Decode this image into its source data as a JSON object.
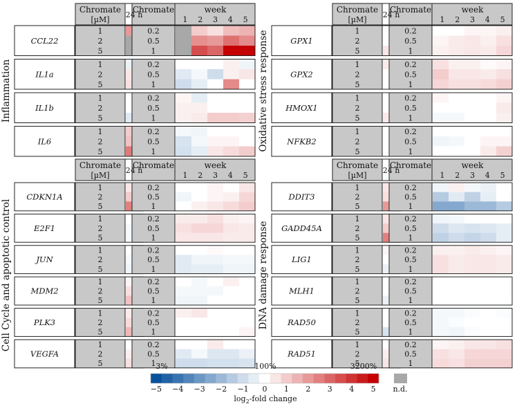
{
  "chart_data": {
    "type": "heatmap",
    "title": "",
    "week_label": "week",
    "hdr_chromate": "Chromate",
    "hdr_uM": "[µM]",
    "hdr_24h": "24 h",
    "week_ticks": [
      "1",
      "2",
      "3",
      "4",
      "5"
    ],
    "conc_24h": [
      "1",
      "2",
      "5"
    ],
    "conc_week": [
      "0.2",
      "0.5",
      "1"
    ],
    "panels": [
      {
        "id": "inflammation",
        "title": "Inflammation",
        "genes": [
          {
            "name": "CCL22",
            "h24": [
              2,
              "nd",
              "nd"
            ],
            "weeks": [
              [
                "nd",
                1,
                0.6,
                1.3,
                1.5
              ],
              [
                "nd",
                2.2,
                2,
                2.8,
                2.3
              ],
              [
                "nd",
                3.5,
                3,
                5,
                5
              ]
            ]
          },
          {
            "name": "IL1a",
            "h24": [
              -0.4,
              0.5,
              0.6
            ],
            "weeks": [
              [
                0,
                0,
                0,
                0.3,
                -0.3
              ],
              [
                -0.6,
                -0.2,
                -1,
                0.3,
                0.5
              ],
              [
                -1,
                -0.5,
                0,
                2.3,
                0
              ]
            ]
          },
          {
            "name": "IL1b",
            "h24": [
              0,
              0,
              -0.6
            ],
            "weeks": [
              [
                0.2,
                -0.5,
                0,
                0,
                0
              ],
              [
                0.3,
                0.3,
                0,
                0,
                0
              ],
              [
                0.3,
                0.4,
                1,
                1,
                0.9
              ]
            ]
          },
          {
            "name": "IL6",
            "h24": [
              1,
              1.2,
              2.6
            ],
            "weeks": [
              [
                -0.2,
                -0.3,
                0,
                0,
                0
              ],
              [
                -0.8,
                -0.2,
                0.2,
                0.2,
                0
              ],
              [
                -0.9,
                -0.5,
                0.5,
                0.7,
                1
              ]
            ]
          }
        ]
      },
      {
        "id": "oxidative",
        "title": "Oxidative stress response",
        "genes": [
          {
            "name": "GPX1",
            "h24": [
              0,
              0,
              0.5
            ],
            "weeks": [
              [
                0,
                0,
                0.2,
                0.2,
                0.3
              ],
              [
                0.2,
                0.4,
                0.5,
                0.3,
                0.6
              ],
              [
                0.3,
                0.4,
                0.5,
                0.4,
                0.8
              ]
            ]
          },
          {
            "name": "GPX2",
            "h24": [
              0.4,
              0,
              0
            ],
            "weeks": [
              [
                0.6,
                0.3,
                0.3,
                0.1,
                0.2
              ],
              [
                1,
                0.5,
                0.5,
                0.4,
                0.6
              ],
              [
                0.8,
                0.6,
                0.6,
                0.7,
                0.9
              ]
            ]
          },
          {
            "name": "HMOX1",
            "h24": [
              0,
              0,
              0.4
            ],
            "weeks": [
              [
                0.2,
                0,
                0,
                0,
                0.2
              ],
              [
                0,
                0,
                0,
                0,
                0.4
              ],
              [
                -0.2,
                -0.2,
                0,
                0,
                0.3
              ]
            ]
          },
          {
            "name": "NFKB2",
            "h24": [
              0,
              0,
              0
            ],
            "weeks": [
              [
                0,
                0,
                0,
                0,
                0
              ],
              [
                -0.3,
                -0.2,
                0,
                0.2,
                0.2
              ],
              [
                0,
                0,
                0,
                0.4,
                0.9
              ]
            ]
          }
        ]
      },
      {
        "id": "cellcycle",
        "title": "Cell Cycle and apoptotic control",
        "genes": [
          {
            "name": "CDKN1A",
            "h24": [
              0.5,
              1,
              2.5
            ],
            "weeks": [
              [
                0,
                0,
                0.2,
                0,
                0.5
              ],
              [
                -0.3,
                0,
                0.2,
                0.3,
                0.8
              ],
              [
                0,
                0.3,
                0.5,
                0.7,
                1
              ]
            ]
          },
          {
            "name": "E2F1",
            "h24": [
              0,
              -0.2,
              -0.2
            ],
            "weeks": [
              [
                0.4,
                0.4,
                0.6,
                0.3,
                0.2
              ],
              [
                0.6,
                0.8,
                0.8,
                0.5,
                0.4
              ],
              [
                0.5,
                0.5,
                0.5,
                0.4,
                0.4
              ]
            ]
          },
          {
            "name": "JUN",
            "h24": [
              0,
              -0.2,
              -0.3
            ],
            "weeks": [
              [
                0,
                0,
                0.1,
                0,
                0
              ],
              [
                -0.6,
                -0.3,
                -0.3,
                -0.2,
                -0.2
              ],
              [
                -0.6,
                -0.5,
                -0.5,
                -0.3,
                -0.3
              ]
            ]
          },
          {
            "name": "MDM2",
            "h24": [
              0.2,
              0.6,
              1.2
            ],
            "weeks": [
              [
                0,
                -0.2,
                0,
                0.3,
                0
              ],
              [
                -0.2,
                -0.2,
                -0.2,
                0,
                0
              ],
              [
                -0.3,
                -0.3,
                0,
                0,
                0
              ]
            ]
          },
          {
            "name": "PLK3",
            "h24": [
              0.4,
              0.7,
              1.4
            ],
            "weeks": [
              [
                0.3,
                0.5,
                0,
                0,
                0
              ],
              [
                0,
                0,
                0,
                0,
                0
              ],
              [
                0,
                0,
                0,
                0,
                0.2
              ]
            ]
          },
          {
            "name": "VEGFA",
            "h24": [
              0,
              0.3,
              0.6
            ],
            "weeks": [
              [
                0,
                0,
                0.4,
                0,
                0
              ],
              [
                -0.6,
                -0.2,
                -0.7,
                -0.7,
                -0.4
              ],
              [
                -1,
                -1,
                -0.9,
                -0.9,
                -0.8
              ]
            ]
          }
        ]
      },
      {
        "id": "dnadamage",
        "title": "DNA damage response",
        "genes": [
          {
            "name": "DDIT3",
            "h24": [
              0.5,
              0.6,
              2
            ],
            "weeks": [
              [
                -0.3,
                0.3,
                -0.2,
                -0.4,
                0
              ],
              [
                -1.5,
                -0.6,
                -1.3,
                -0.5,
                0
              ],
              [
                -2.5,
                -2.5,
                -2,
                -2,
                -1.5
              ]
            ]
          },
          {
            "name": "GADD45A",
            "h24": [
              0.5,
              1,
              2.5
            ],
            "weeks": [
              [
                -0.3,
                -0.2,
                0,
                0,
                0
              ],
              [
                -1,
                -0.7,
                -0.8,
                -0.7,
                -0.5
              ],
              [
                -1.3,
                -1,
                -1.2,
                -1,
                -0.5
              ]
            ]
          },
          {
            "name": "LIG1",
            "h24": [
              0.2,
              0,
              -0.4
            ],
            "weeks": [
              [
                0.3,
                0.3,
                0.4,
                0.3,
                0.2
              ],
              [
                0.6,
                0.4,
                0.5,
                0.5,
                0.4
              ],
              [
                0.6,
                0.4,
                0.5,
                0.5,
                0.4
              ]
            ]
          },
          {
            "name": "MLH1",
            "h24": [
              0,
              0,
              -0.4
            ],
            "weeks": [
              [
                0,
                0,
                0,
                0,
                0
              ],
              [
                0,
                0,
                0,
                0,
                0
              ],
              [
                0,
                0,
                0,
                0,
                0
              ]
            ]
          },
          {
            "name": "RAD50",
            "h24": [
              0,
              0,
              -0.8
            ],
            "weeks": [
              [
                -0.2,
                -0.2,
                -0.1,
                0,
                -0.1
              ],
              [
                -0.2,
                -0.1,
                0,
                0,
                0
              ],
              [
                -0.2,
                -0.3,
                -0.1,
                0,
                0
              ]
            ]
          },
          {
            "name": "RAD51",
            "h24": [
              0,
              0.3,
              0.5
            ],
            "weeks": [
              [
                0.2,
                0.3,
                0.5,
                0.5,
                0.6
              ],
              [
                0.6,
                0.5,
                0.8,
                0.8,
                0.8
              ],
              [
                0.7,
                0.6,
                0.9,
                0.9,
                0.9
              ]
            ]
          }
        ]
      }
    ],
    "legend": {
      "ticks": [
        "−5",
        "−4",
        "−3",
        "−2",
        "−1",
        "0",
        "1",
        "2",
        "3",
        "4",
        "5"
      ],
      "pct_low": "3%",
      "pct_mid": "100%",
      "pct_high": "3200%",
      "label": "log",
      "label_sub": "2",
      "label_rest": "-fold change",
      "nd_label": "n.d."
    },
    "colors": {
      "neg": "#08519c",
      "pos": "#c40000",
      "nd": "#a8a8a8",
      "label_bg": "#c8c8c8"
    },
    "vmin": -5,
    "vmax": 5
  }
}
